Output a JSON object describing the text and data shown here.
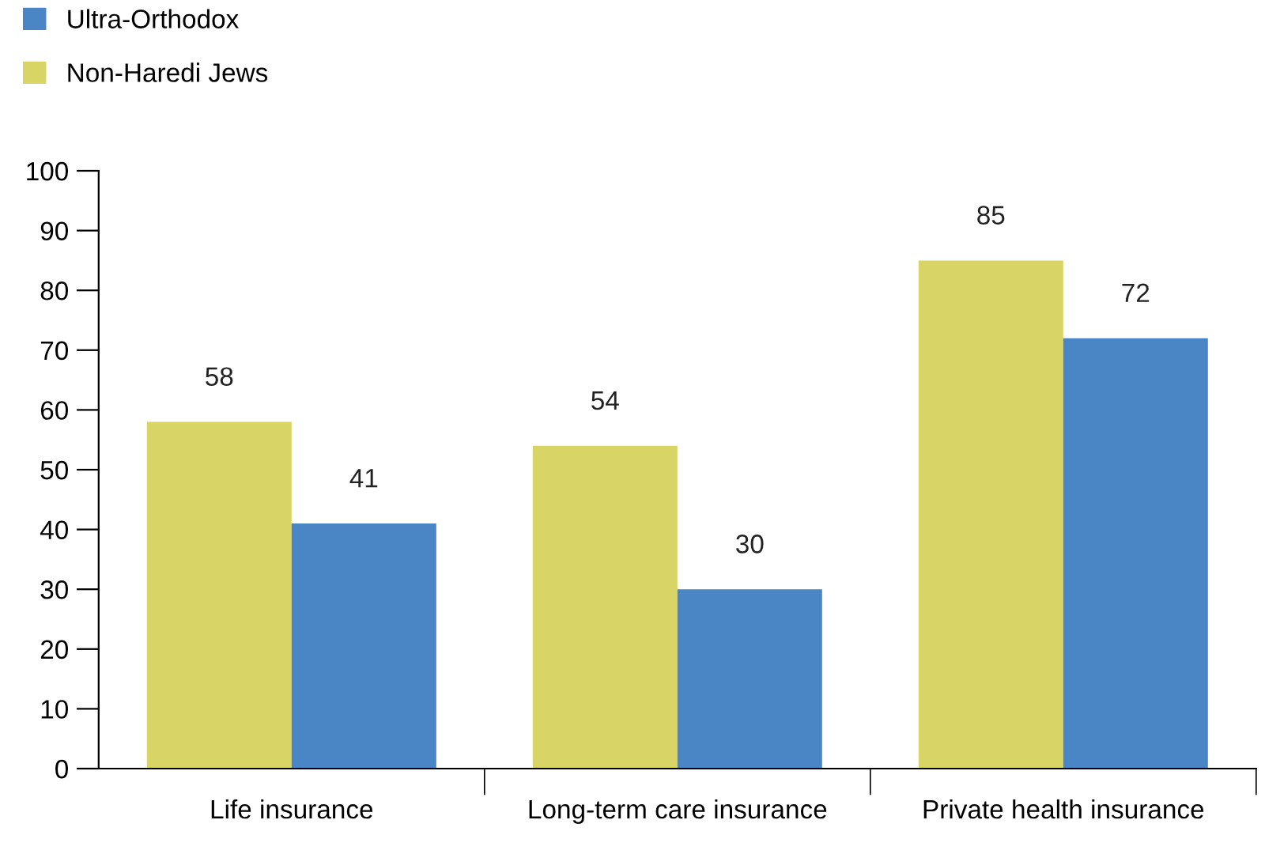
{
  "chart_data": {
    "type": "bar",
    "categories": [
      "Life insurance",
      "Long-term care insurance",
      "Private health insurance"
    ],
    "series": [
      {
        "name": "Non-Haredi Jews",
        "color": "#d8d566",
        "values": [
          58,
          54,
          85
        ]
      },
      {
        "name": "Ultra-Orthodox",
        "color": "#4a86c6",
        "values": [
          41,
          30,
          72
        ]
      }
    ],
    "ylim": [
      0,
      100
    ],
    "yticks": [
      0,
      10,
      20,
      30,
      40,
      50,
      60,
      70,
      80,
      90,
      100
    ],
    "grid": false,
    "legend": "top left",
    "data_labels": true
  }
}
